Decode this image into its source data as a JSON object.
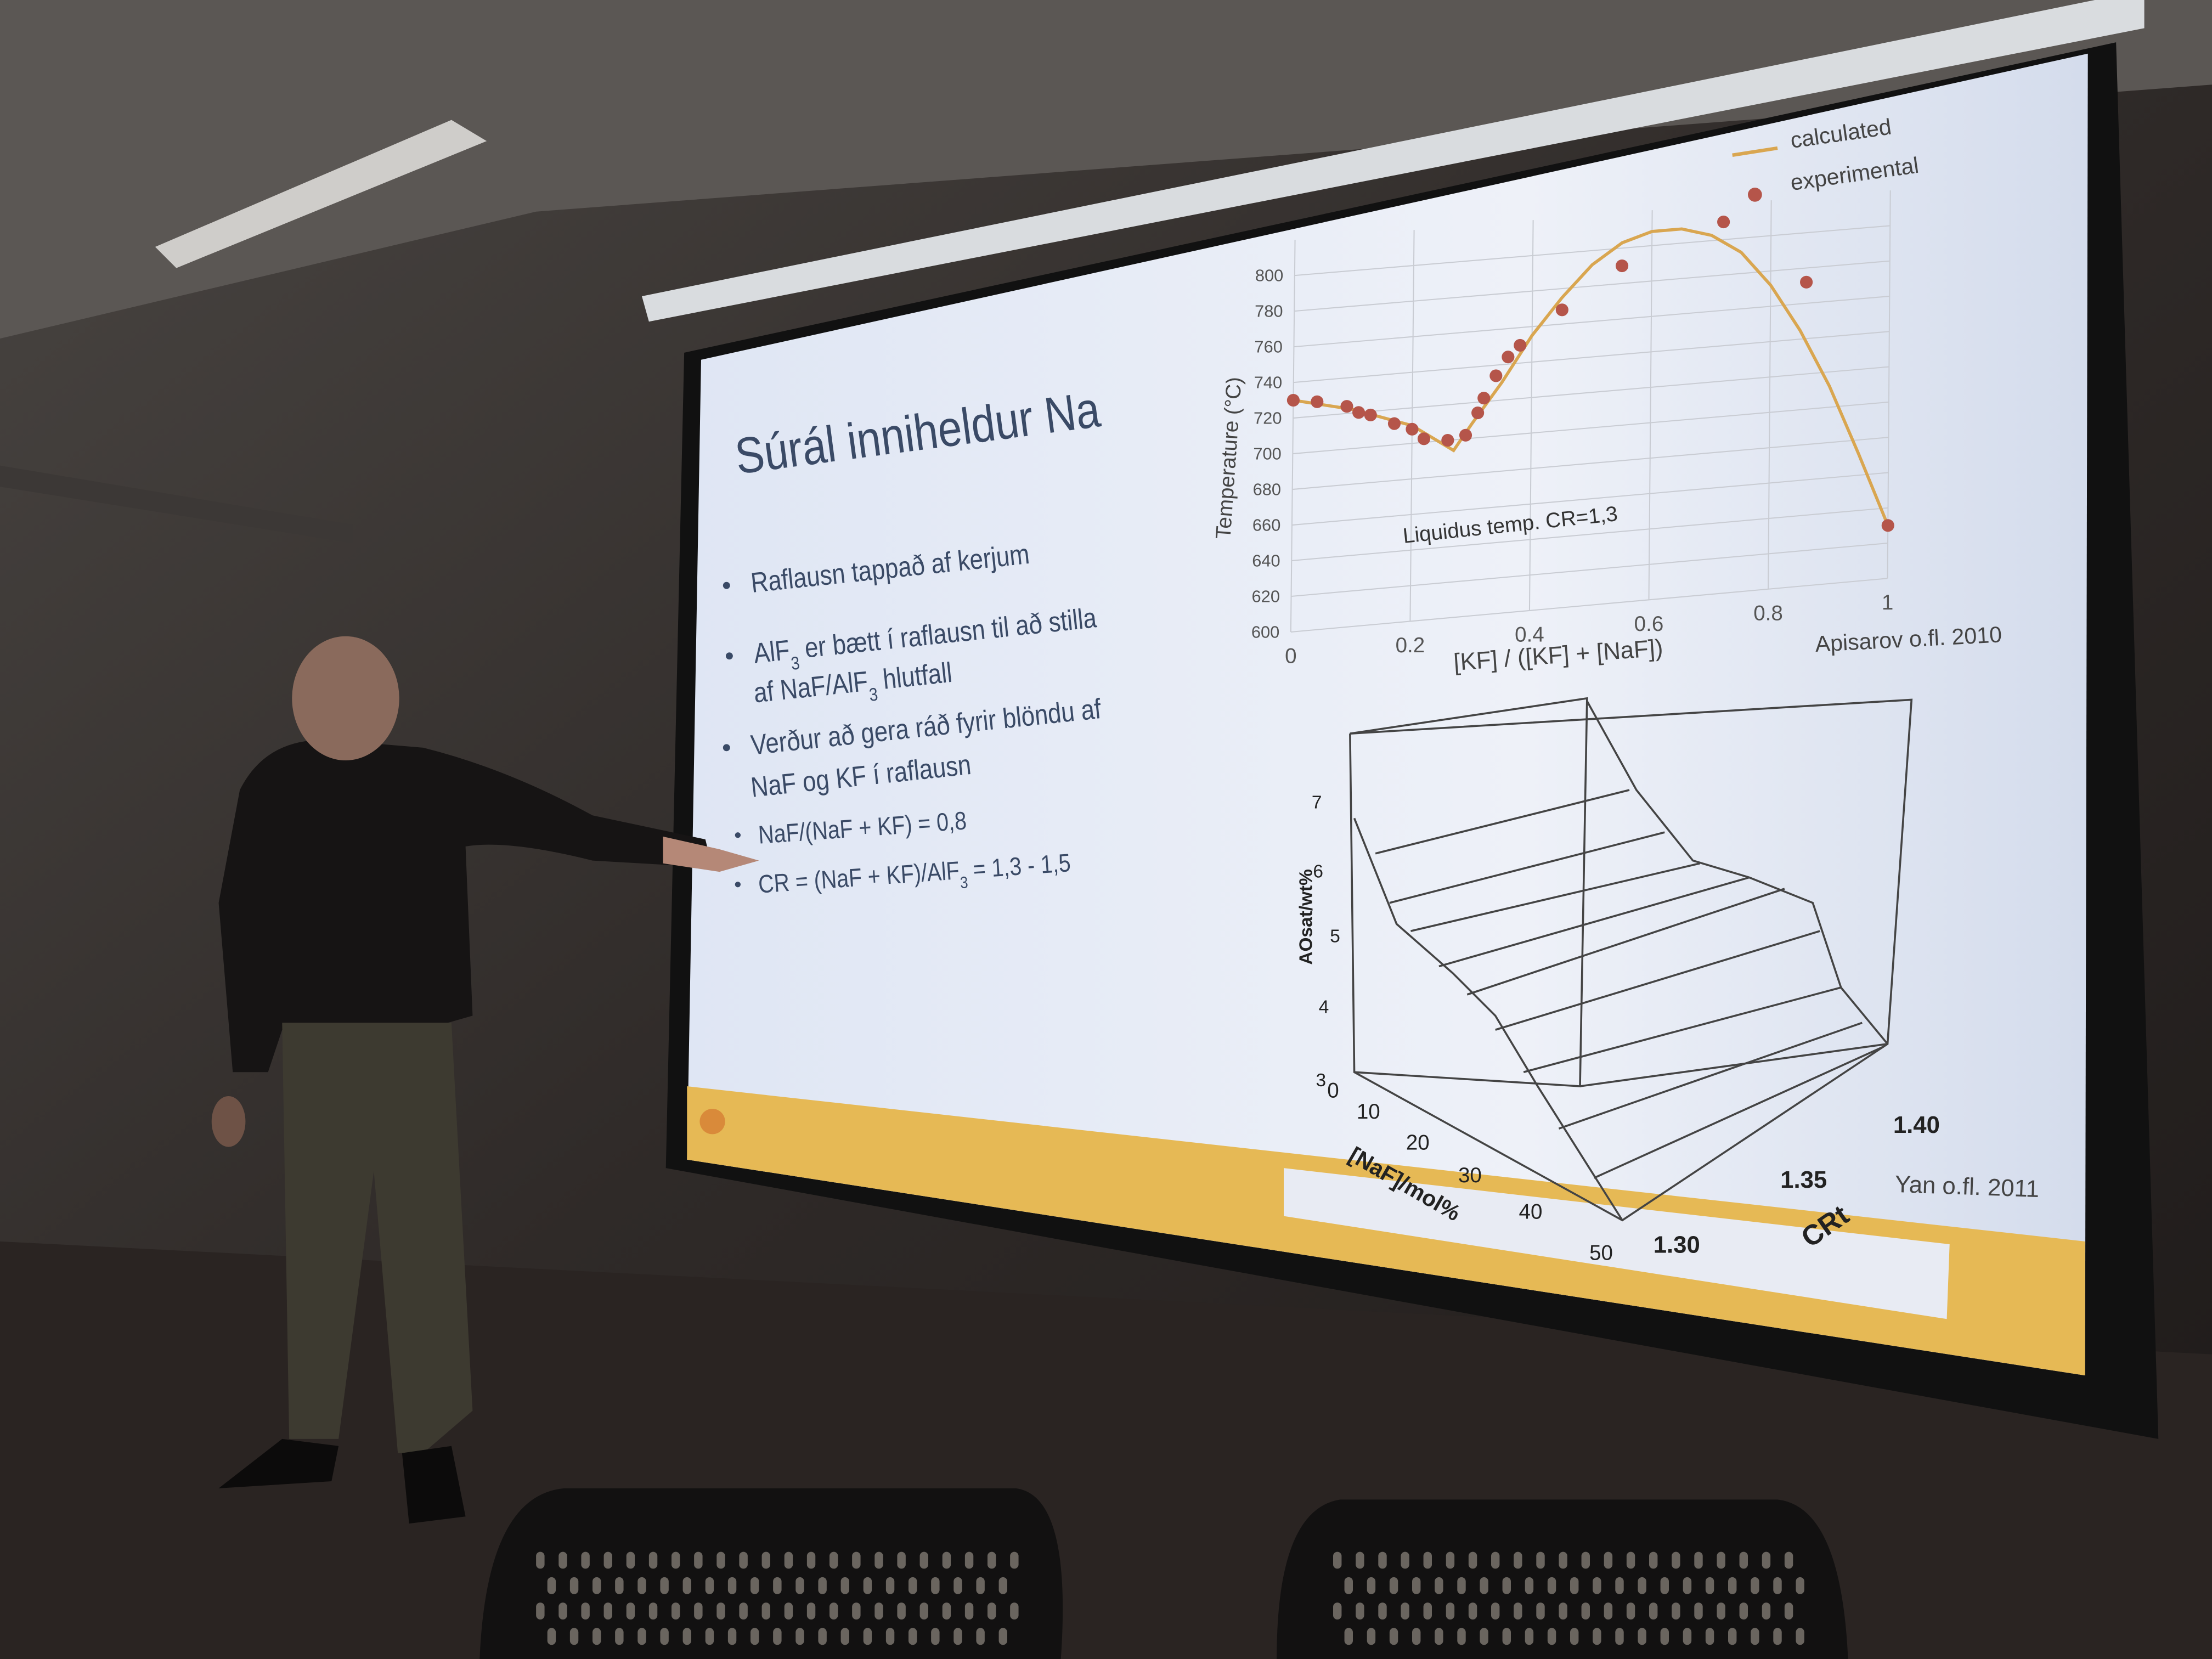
{
  "slide": {
    "title": "Súrál inniheldur Na",
    "bullets": [
      {
        "lines": [
          [
            "Raflausn tappað af kerjum"
          ]
        ]
      },
      {
        "lines": [
          [
            "AlF",
            "3",
            " er bætt í raflausn til að stilla"
          ],
          [
            "af NaF/AlF",
            "3",
            " hlutfall"
          ]
        ]
      },
      {
        "lines": [
          [
            "Verður að gera ráð fyrir blöndu af"
          ],
          [
            "NaF og KF í raflausn"
          ]
        ]
      }
    ],
    "sub_bullets": [
      {
        "lines": [
          [
            "NaF/(NaF + KF) = 0,8"
          ]
        ]
      },
      {
        "lines": [
          [
            "CR = (NaF + KF)/AlF",
            "3",
            " = 1,3 - 1,5"
          ]
        ]
      }
    ],
    "surface_plot": {
      "z_label": "AOsat/wt%",
      "x_label": "[NaF]/mol%",
      "y_label": "CRt",
      "z_ticks": [
        "3",
        "4",
        "5",
        "6",
        "7"
      ],
      "x_ticks": [
        "0",
        "10",
        "20",
        "30",
        "40",
        "50"
      ],
      "y_ticks": [
        "1.30",
        "1.35",
        "1.40"
      ],
      "source": "Yan o.fl. 2011"
    }
  },
  "chart_data": {
    "type": "scatter",
    "y_label": "Temperature (°C)",
    "x_label": "[KF] / ([KF] + [NaF])",
    "annotation": "Liquidus temp. CR=1,3",
    "source": "Apisarov o.fl. 2010",
    "xlim": [
      0,
      1
    ],
    "xticks": [
      0,
      0.2,
      0.4,
      0.6,
      0.8,
      1
    ],
    "ylim": [
      600,
      820
    ],
    "yticks": [
      600,
      620,
      640,
      660,
      680,
      700,
      720,
      740,
      760,
      780,
      800
    ],
    "grid": true,
    "series": [
      {
        "name": "calculated",
        "type": "line",
        "color": "#d9a650",
        "x": [
          0,
          0.1,
          0.2,
          0.27,
          0.3,
          0.35,
          0.4,
          0.45,
          0.5,
          0.55,
          0.6,
          0.65,
          0.7,
          0.75,
          0.8,
          0.85,
          0.9,
          0.95,
          1
        ],
        "values": [
          730,
          722,
          710,
          694,
          708,
          730,
          755,
          775,
          792,
          803,
          808,
          808,
          803,
          792,
          772,
          745,
          712,
          672,
          630
        ]
      },
      {
        "name": "experimental",
        "type": "scatter",
        "color": "#b5554a",
        "x": [
          0,
          0.04,
          0.09,
          0.11,
          0.13,
          0.17,
          0.2,
          0.22,
          0.26,
          0.29,
          0.31,
          0.32,
          0.34,
          0.36,
          0.38,
          0.45,
          0.55,
          0.72,
          0.86,
          1
        ],
        "values": [
          730,
          728,
          724,
          720,
          718,
          712,
          708,
          702,
          700,
          702,
          714,
          722,
          734,
          744,
          750,
          768,
          790,
          810,
          772,
          630
        ]
      }
    ]
  }
}
